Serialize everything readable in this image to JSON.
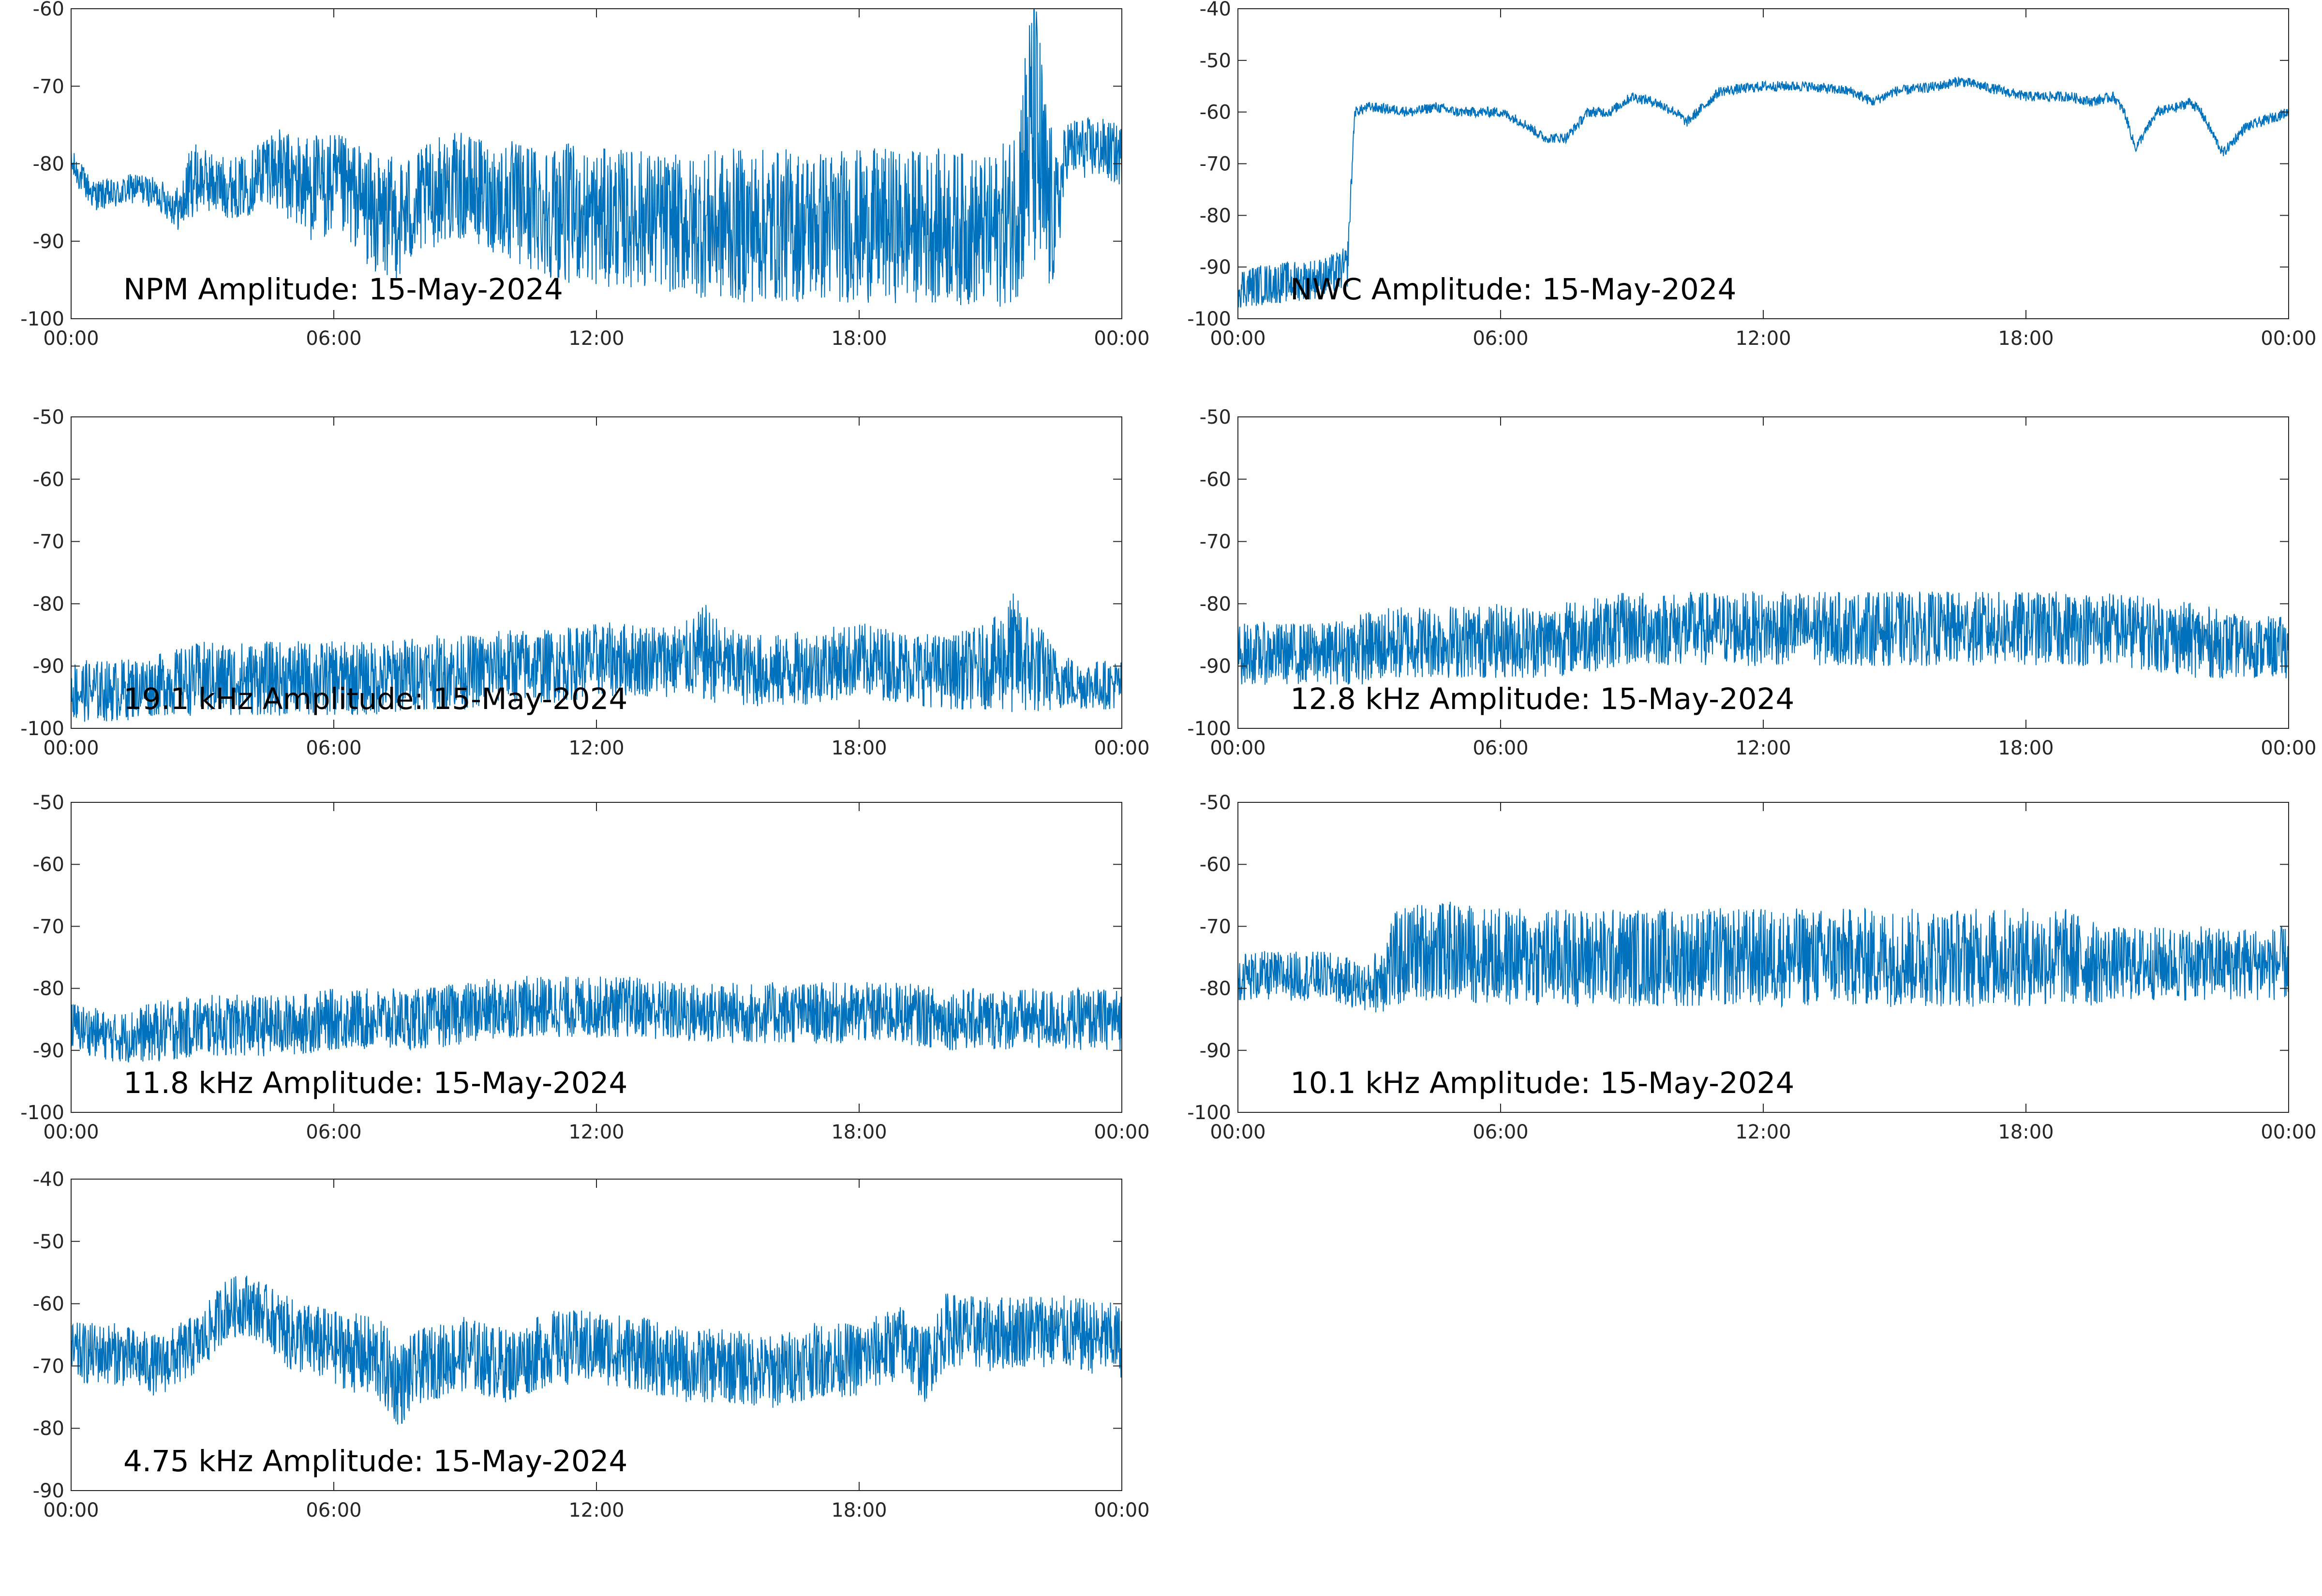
{
  "figure": {
    "trace_color": "#0072BD",
    "axis_color": "#262626",
    "background": "#ffffff"
  },
  "chart_data": [
    {
      "type": "line",
      "title": "NPM Amplitude: 15-May-2024",
      "x_tick_labels": [
        "00:00",
        "06:00",
        "12:00",
        "18:00",
        "00:00"
      ],
      "y_tick_labels": [
        "-100",
        "-90",
        "-80",
        "-70",
        "-60"
      ],
      "ylim": [
        -100,
        -60
      ],
      "xlim": [
        "00:00",
        "24:00"
      ],
      "grid": false,
      "series": [
        {
          "x": [
            "00:00",
            "00:30",
            "01:00",
            "01:30",
            "02:00",
            "02:30",
            "02:45",
            "03:00",
            "03:30",
            "04:00",
            "04:30",
            "05:00",
            "05:30",
            "06:00",
            "06:30",
            "07:00",
            "07:30",
            "08:00",
            "08:30",
            "09:00",
            "09:30",
            "10:00",
            "11:00",
            "12:00",
            "13:00",
            "14:00",
            "15:00",
            "16:00",
            "17:00",
            "18:00",
            "19:00",
            "20:00",
            "21:00",
            "21:30",
            "22:00",
            "22:15",
            "22:30",
            "22:45",
            "23:00",
            "23:30",
            "24:00"
          ],
          "y": [
            -80,
            -84,
            -84,
            -83,
            -84,
            -86,
            -82,
            -82,
            -83,
            -83,
            -80,
            -82,
            -83,
            -83,
            -84,
            -87,
            -87,
            -85,
            -83,
            -83,
            -84,
            -85,
            -86,
            -87,
            -87,
            -88,
            -88,
            -88,
            -88,
            -88,
            -88,
            -88,
            -89,
            -87,
            -75,
            -85,
            -87,
            -78,
            -78,
            -78,
            -79
          ],
          "spread": [
            2,
            2,
            2,
            2,
            2,
            3,
            5,
            4,
            4,
            4,
            5,
            6,
            7,
            7,
            7,
            8,
            8,
            7,
            7,
            7,
            7,
            8,
            9,
            9,
            9,
            9,
            10,
            10,
            10,
            10,
            10,
            10,
            10,
            11,
            20,
            15,
            8,
            4,
            4,
            4,
            4
          ]
        }
      ]
    },
    {
      "type": "line",
      "title": "NWC Amplitude: 15-May-2024",
      "x_tick_labels": [
        "00:00",
        "06:00",
        "12:00",
        "18:00",
        "00:00"
      ],
      "y_tick_labels": [
        "-100",
        "-90",
        "-80",
        "-70",
        "-60",
        "-50",
        "-40"
      ],
      "ylim": [
        -100,
        -40
      ],
      "xlim": [
        "00:00",
        "24:00"
      ],
      "grid": false,
      "series": [
        {
          "x": [
            "00:00",
            "01:00",
            "02:00",
            "02:30",
            "02:40",
            "03:00",
            "04:00",
            "04:30",
            "05:00",
            "06:00",
            "06:30",
            "07:00",
            "07:15",
            "07:30",
            "08:00",
            "08:30",
            "09:00",
            "09:30",
            "10:00",
            "10:15",
            "11:00",
            "12:00",
            "13:00",
            "14:00",
            "14:30",
            "15:00",
            "16:00",
            "16:30",
            "17:00",
            "18:00",
            "19:00",
            "19:30",
            "20:00",
            "20:15",
            "20:30",
            "21:00",
            "21:30",
            "21:45",
            "22:00",
            "22:30",
            "23:00",
            "24:00"
          ],
          "y": [
            -94,
            -93,
            -92,
            -90,
            -60,
            -59,
            -60,
            -59,
            -60,
            -60,
            -62,
            -65,
            -65,
            -65,
            -60,
            -60,
            -57,
            -58,
            -60,
            -62,
            -56,
            -55,
            -55,
            -56,
            -58,
            -56,
            -55,
            -54,
            -55,
            -57,
            -57,
            -58,
            -57,
            -60,
            -67,
            -60,
            -59,
            -58,
            -60,
            -68,
            -63,
            -60
          ],
          "spread": [
            4,
            4,
            4,
            4,
            1,
            1,
            1,
            1,
            1,
            1,
            1,
            1,
            1,
            1,
            1,
            1,
            1,
            1,
            1,
            1,
            1,
            1,
            1,
            1,
            1,
            1,
            1,
            1,
            1,
            1,
            1,
            1,
            1,
            1,
            1,
            1,
            1,
            1,
            1,
            1,
            1,
            1
          ]
        }
      ]
    },
    {
      "type": "line",
      "title": "19.1 kHz Amplitude: 15-May-2024",
      "x_tick_labels": [
        "00:00",
        "06:00",
        "12:00",
        "18:00",
        "00:00"
      ],
      "y_tick_labels": [
        "-100",
        "-90",
        "-80",
        "-70",
        "-60",
        "-50"
      ],
      "ylim": [
        -100,
        -50
      ],
      "xlim": [
        "00:00",
        "24:00"
      ],
      "grid": false,
      "series": [
        {
          "x": [
            "00:00",
            "01:00",
            "02:00",
            "03:00",
            "04:00",
            "05:00",
            "06:00",
            "07:00",
            "08:00",
            "09:00",
            "10:00",
            "11:00",
            "12:00",
            "13:00",
            "14:00",
            "14:30",
            "15:00",
            "16:00",
            "17:00",
            "18:00",
            "19:00",
            "20:00",
            "21:00",
            "21:30",
            "22:00",
            "22:30",
            "23:00",
            "24:00"
          ],
          "y": [
            -94,
            -94,
            -93,
            -92,
            -92,
            -92,
            -92,
            -92,
            -91,
            -91,
            -90,
            -90,
            -89,
            -89,
            -89,
            -88,
            -90,
            -91,
            -90,
            -89,
            -90,
            -91,
            -90,
            -88,
            -90,
            -92,
            -93,
            -93
          ],
          "spread": [
            5,
            5,
            5,
            6,
            6,
            6,
            6,
            6,
            6,
            6,
            6,
            6,
            6,
            6,
            6,
            8,
            6,
            6,
            6,
            6,
            6,
            6,
            7,
            10,
            8,
            5,
            4,
            4
          ]
        }
      ]
    },
    {
      "type": "line",
      "title": "12.8 kHz Amplitude: 15-May-2024",
      "x_tick_labels": [
        "00:00",
        "06:00",
        "12:00",
        "18:00",
        "00:00"
      ],
      "y_tick_labels": [
        "-100",
        "-90",
        "-80",
        "-70",
        "-60",
        "-50"
      ],
      "ylim": [
        -100,
        -50
      ],
      "xlim": [
        "00:00",
        "24:00"
      ],
      "grid": false,
      "series": [
        {
          "x": [
            "00:00",
            "01:00",
            "02:00",
            "03:00",
            "04:00",
            "05:00",
            "06:00",
            "07:00",
            "08:00",
            "09:00",
            "10:00",
            "11:00",
            "12:00",
            "13:00",
            "14:00",
            "15:00",
            "16:00",
            "17:00",
            "18:00",
            "19:00",
            "20:00",
            "21:00",
            "22:00",
            "23:00",
            "24:00"
          ],
          "y": [
            -88,
            -88,
            -88,
            -87,
            -86,
            -86,
            -86,
            -86,
            -85,
            -84,
            -84,
            -84,
            -84,
            -84,
            -84,
            -84,
            -84,
            -84,
            -84,
            -84,
            -84,
            -85,
            -86,
            -87,
            -87
          ],
          "spread": [
            5,
            5,
            5,
            6,
            6,
            6,
            6,
            6,
            6,
            6,
            6,
            6,
            6,
            6,
            6,
            6,
            6,
            6,
            6,
            6,
            6,
            6,
            6,
            5,
            5
          ]
        }
      ]
    },
    {
      "type": "line",
      "title": "11.8 kHz Amplitude: 15-May-2024",
      "x_tick_labels": [
        "00:00",
        "06:00",
        "12:00",
        "18:00",
        "00:00"
      ],
      "y_tick_labels": [
        "-100",
        "-90",
        "-80",
        "-70",
        "-60",
        "-50"
      ],
      "ylim": [
        -100,
        -50
      ],
      "xlim": [
        "00:00",
        "24:00"
      ],
      "grid": false,
      "series": [
        {
          "x": [
            "00:00",
            "01:00",
            "02:00",
            "03:00",
            "04:00",
            "05:00",
            "06:00",
            "07:00",
            "08:00",
            "09:00",
            "10:00",
            "11:00",
            "12:00",
            "13:00",
            "14:00",
            "15:00",
            "16:00",
            "17:00",
            "18:00",
            "19:00",
            "20:00",
            "21:00",
            "22:00",
            "23:00",
            "24:00"
          ],
          "y": [
            -86,
            -88,
            -87,
            -86,
            -86,
            -86,
            -85,
            -85,
            -85,
            -84,
            -83,
            -83,
            -83,
            -83,
            -84,
            -84,
            -84,
            -84,
            -84,
            -84,
            -85,
            -85,
            -85,
            -85,
            -85
          ],
          "spread": [
            4,
            4,
            5,
            5,
            5,
            5,
            5,
            5,
            5,
            5,
            5,
            5,
            5,
            5,
            5,
            5,
            5,
            5,
            5,
            5,
            5,
            5,
            5,
            5,
            5
          ]
        }
      ]
    },
    {
      "type": "line",
      "title": "10.1 kHz Amplitude: 15-May-2024",
      "x_tick_labels": [
        "00:00",
        "06:00",
        "12:00",
        "18:00",
        "00:00"
      ],
      "y_tick_labels": [
        "-100",
        "-90",
        "-80",
        "-70",
        "-60",
        "-50"
      ],
      "ylim": [
        -100,
        -50
      ],
      "xlim": [
        "00:00",
        "24:00"
      ],
      "grid": false,
      "series": [
        {
          "x": [
            "00:00",
            "01:00",
            "02:00",
            "03:00",
            "03:30",
            "04:00",
            "05:00",
            "06:00",
            "07:00",
            "08:00",
            "09:00",
            "10:00",
            "11:00",
            "12:00",
            "13:00",
            "14:00",
            "15:00",
            "16:00",
            "17:00",
            "18:00",
            "19:00",
            "19:30",
            "20:00",
            "21:00",
            "22:00",
            "23:00",
            "24:00"
          ],
          "y": [
            -78,
            -78,
            -78,
            -80,
            -76,
            -74,
            -74,
            -75,
            -75,
            -75,
            -75,
            -75,
            -75,
            -75,
            -75,
            -75,
            -75,
            -75,
            -75,
            -75,
            -75,
            -76,
            -76,
            -76,
            -76,
            -76,
            -76
          ],
          "spread": [
            4,
            4,
            4,
            4,
            8,
            8,
            8,
            8,
            8,
            8,
            8,
            8,
            8,
            8,
            8,
            8,
            8,
            8,
            8,
            8,
            8,
            7,
            6,
            6,
            6,
            6,
            6
          ]
        }
      ]
    },
    {
      "type": "line",
      "title": "4.75 kHz Amplitude: 15-May-2024",
      "x_tick_labels": [
        "00:00",
        "06:00",
        "12:00",
        "18:00",
        "00:00"
      ],
      "y_tick_labels": [
        "-90",
        "-80",
        "-70",
        "-60",
        "-50",
        "-40"
      ],
      "ylim": [
        -90,
        -40
      ],
      "xlim": [
        "00:00",
        "24:00"
      ],
      "grid": false,
      "series": [
        {
          "x": [
            "00:00",
            "01:00",
            "02:00",
            "03:00",
            "03:30",
            "04:00",
            "04:30",
            "05:00",
            "06:00",
            "07:00",
            "07:30",
            "08:00",
            "09:00",
            "10:00",
            "11:00",
            "12:00",
            "13:00",
            "14:00",
            "15:00",
            "16:00",
            "17:00",
            "18:00",
            "19:00",
            "19:30",
            "20:00",
            "21:00",
            "22:00",
            "23:00",
            "24:00"
          ],
          "y": [
            -68,
            -68,
            -70,
            -66,
            -61,
            -60,
            -62,
            -65,
            -67,
            -69,
            -73,
            -70,
            -68,
            -70,
            -67,
            -67,
            -68,
            -70,
            -70,
            -71,
            -69,
            -69,
            -66,
            -70,
            -64,
            -65,
            -64,
            -65,
            -66
          ],
          "spread": [
            5,
            5,
            5,
            5,
            5,
            5,
            5,
            6,
            6,
            7,
            7,
            6,
            6,
            6,
            6,
            6,
            6,
            6,
            6,
            6,
            6,
            6,
            6,
            6,
            6,
            6,
            6,
            6,
            6
          ]
        }
      ]
    }
  ]
}
